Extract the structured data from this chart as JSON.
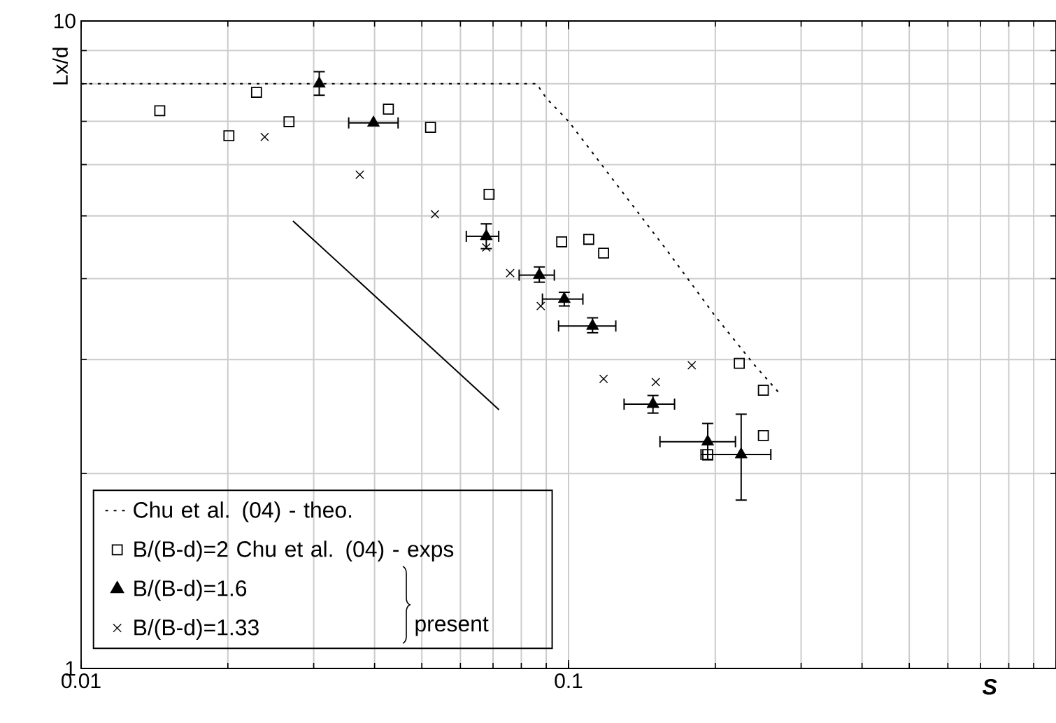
{
  "chart_data": {
    "type": "scatter",
    "xlabel": "S",
    "ylabel": "Lx/d",
    "log": "xy",
    "grid": true,
    "legend": "bottom left",
    "xlim": [
      0.01,
      1
    ],
    "ylim": [
      1,
      10
    ],
    "xticks": [
      0.01,
      0.1,
      {
        "value": 1,
        "label": null
      }
    ],
    "yticks": [
      1,
      10
    ],
    "annotations": [
      "present"
    ],
    "series": [
      {
        "name": "Chu et al. (04) - theo.",
        "type": "line",
        "line_style": "dotted",
        "marker": "none",
        "color": "#000000",
        "x": [
          0.01,
          0.086,
          0.09,
          0.1,
          0.13,
          0.16,
          0.2,
          0.24,
          0.272
        ],
        "values": [
          8,
          8,
          7.6,
          7.0,
          5.4,
          4.4,
          3.5,
          2.95,
          2.65
        ]
      },
      {
        "name": "B/(B-d)=2 Chu et al. (04) - exps",
        "marker": "square",
        "color": "#000000",
        "x": [
          0.0145,
          0.0201,
          0.0229,
          0.0267,
          0.0427,
          0.0521,
          0.0687,
          0.0968,
          0.11,
          0.118,
          0.224,
          0.251,
          0.251,
          0.193
        ],
        "values": [
          7.27,
          6.65,
          7.76,
          6.99,
          7.31,
          6.85,
          5.4,
          4.56,
          4.6,
          4.38,
          2.96,
          2.69,
          2.29,
          2.14
        ]
      },
      {
        "name": "B/(B-d)=1.6",
        "marker": "triangle",
        "color": "#000000",
        "x": [
          0.0308,
          0.0398,
          0.0678,
          0.0871,
          0.098,
          0.112,
          0.149,
          0.193,
          0.226
        ],
        "values": [
          8.0,
          6.96,
          4.65,
          4.05,
          3.72,
          3.38,
          2.56,
          2.24,
          2.14
        ],
        "errors": [
          [
            7.68,
            8.35
          ],
          null,
          [
            4.45,
            4.86
          ],
          [
            3.95,
            4.17
          ],
          [
            3.63,
            3.81
          ],
          [
            3.3,
            3.48
          ],
          [
            2.48,
            2.64
          ],
          [
            2.1,
            2.39
          ],
          [
            1.82,
            2.47
          ]
        ],
        "xerrors": [
          null,
          [
            0.0354,
            0.0447
          ],
          [
            0.0617,
            0.0719
          ],
          [
            0.0792,
            0.0935
          ],
          [
            0.0884,
            0.107
          ],
          [
            0.0954,
            0.125
          ],
          [
            0.13,
            0.165
          ],
          [
            0.154,
            0.22
          ],
          [
            0.187,
            0.26
          ]
        ]
      },
      {
        "name": "B/(B-d)=1.33",
        "marker": "cross",
        "color": "#000000",
        "x": [
          0.0238,
          0.0373,
          0.0532,
          0.0678,
          0.0759,
          0.0877,
          0.118,
          0.151,
          0.179
        ],
        "values": [
          6.62,
          5.79,
          5.03,
          4.47,
          4.08,
          3.63,
          2.8,
          2.77,
          2.94
        ]
      },
      {
        "type": "line",
        "line_style": "solid",
        "marker": "none",
        "color": "#000000",
        "x": [
          0.0272,
          0.072
        ],
        "values": [
          4.91,
          2.51
        ]
      }
    ]
  }
}
